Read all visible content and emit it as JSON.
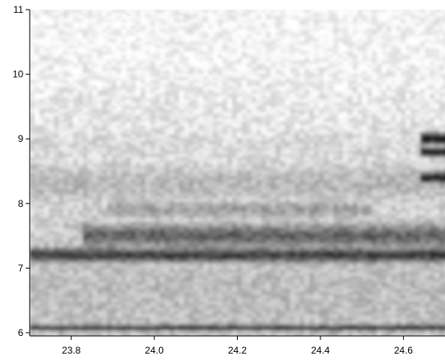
{
  "chart_data": {
    "type": "heatmap",
    "title": "",
    "xlabel": "",
    "ylabel": "",
    "xlim": [
      23.7,
      24.7
    ],
    "ylim": [
      5.95,
      11.0
    ],
    "x_ticks": [
      23.8,
      24.0,
      24.2,
      24.4,
      24.6
    ],
    "x_tick_labels": [
      "23.8",
      "24.0",
      "24.2",
      "24.4",
      "24.6"
    ],
    "y_ticks": [
      6,
      7,
      8,
      9,
      10,
      11
    ],
    "y_tick_labels": [
      "6",
      "7",
      "8",
      "9",
      "10",
      "11"
    ],
    "colormap": "grayscale (white = low, black = high)",
    "colors": {
      "low": "#ffffff",
      "high": "#000000",
      "axis": "#000000"
    },
    "grid": false,
    "legend": "none",
    "features": [
      {
        "y_center": 6.07,
        "y_width": 0.05,
        "intensity": 1.0,
        "x_range": [
          23.7,
          24.7
        ]
      },
      {
        "y_center": 7.2,
        "y_width": 0.14,
        "intensity": 0.78,
        "x_range": [
          23.7,
          24.7
        ]
      },
      {
        "y_center": 7.5,
        "y_width": 0.22,
        "intensity": 0.62,
        "x_range": [
          23.85,
          24.7
        ]
      },
      {
        "y_center": 7.9,
        "y_width": 0.18,
        "intensity": 0.38,
        "x_range": [
          23.9,
          24.5
        ]
      },
      {
        "y_center": 8.3,
        "y_width": 0.45,
        "intensity": 0.28,
        "x_range": [
          23.7,
          24.7
        ]
      },
      {
        "y_center": 8.85,
        "y_width": 0.45,
        "intensity": 0.16,
        "x_range": [
          23.7,
          24.6
        ]
      },
      {
        "y_center": 9.0,
        "y_width": 0.1,
        "intensity": 0.98,
        "x_range": [
          24.66,
          24.7
        ]
      },
      {
        "y_center": 8.8,
        "y_width": 0.08,
        "intensity": 1.0,
        "x_range": [
          24.66,
          24.7
        ]
      },
      {
        "y_center": 8.4,
        "y_width": 0.1,
        "intensity": 0.95,
        "x_range": [
          24.66,
          24.7
        ]
      }
    ]
  }
}
